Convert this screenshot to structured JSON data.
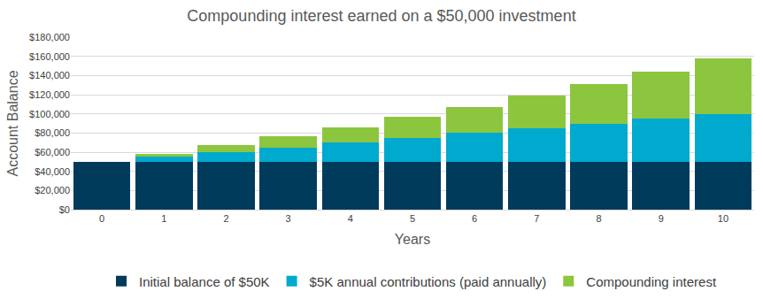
{
  "chart_data": {
    "type": "bar",
    "title": "Compounding interest earned on a $50,000 investment",
    "x_label": "Years",
    "y_label": "Account Balance",
    "categories": [
      "0",
      "1",
      "2",
      "3",
      "4",
      "5",
      "6",
      "7",
      "8",
      "9",
      "10"
    ],
    "series": [
      {
        "name": "Initial balance of $50K",
        "color": "#003b5c",
        "values": [
          50000,
          50000,
          50000,
          50000,
          50000,
          50000,
          50000,
          50000,
          50000,
          50000,
          50000
        ]
      },
      {
        "name": "$5K annual contributions (paid annually)",
        "color": "#00a9ce",
        "values": [
          0,
          5000,
          10000,
          15000,
          20000,
          25000,
          30000,
          35000,
          40000,
          45000,
          50000
        ]
      },
      {
        "name": "Compounding interest",
        "color": "#8cc63f",
        "values": [
          0,
          3000,
          7000,
          12000,
          16000,
          22000,
          27000,
          34000,
          41000,
          49000,
          58000
        ]
      }
    ],
    "stacked": true,
    "ylim": [
      0,
      180000
    ],
    "yticks": [
      {
        "value": 0,
        "label": "$0"
      },
      {
        "value": 20000,
        "label": "$20,000"
      },
      {
        "value": 40000,
        "label": "$40,000"
      },
      {
        "value": 60000,
        "label": "$60,000"
      },
      {
        "value": 80000,
        "label": "$80,000"
      },
      {
        "value": 100000,
        "label": "$100,000"
      },
      {
        "value": 120000,
        "label": "$120,000"
      },
      {
        "value": 140000,
        "label": "$140,000"
      },
      {
        "value": 160000,
        "label": "$160,000"
      },
      {
        "value": 180000,
        "label": "$180,000"
      }
    ],
    "grid": true,
    "legend": "bottom"
  }
}
